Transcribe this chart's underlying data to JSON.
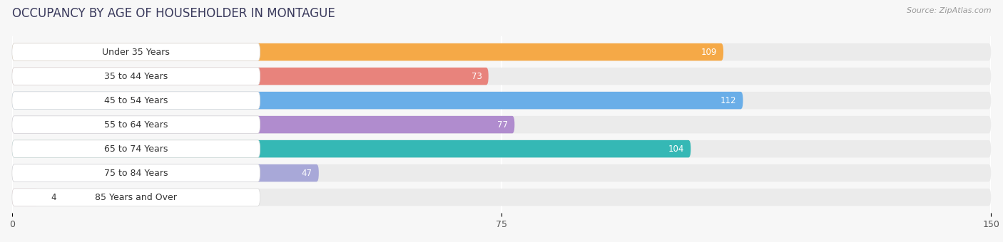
{
  "title": "OCCUPANCY BY AGE OF HOUSEHOLDER IN MONTAGUE",
  "source": "Source: ZipAtlas.com",
  "categories": [
    "Under 35 Years",
    "35 to 44 Years",
    "45 to 54 Years",
    "55 to 64 Years",
    "65 to 74 Years",
    "75 to 84 Years",
    "85 Years and Over"
  ],
  "values": [
    109,
    73,
    112,
    77,
    104,
    47,
    4
  ],
  "bar_colors": [
    "#F5A947",
    "#E8837C",
    "#6AAEE8",
    "#B08CCE",
    "#35B8B5",
    "#A8A8D8",
    "#F5A8BE"
  ],
  "xlim": [
    0,
    150
  ],
  "xticks": [
    0,
    75,
    150
  ],
  "background_color": "#f7f7f7",
  "bar_bg_color": "#ebebeb",
  "title_fontsize": 12,
  "label_fontsize": 9,
  "value_fontsize": 8.5,
  "title_color": "#3a3a5c",
  "source_color": "#999999"
}
